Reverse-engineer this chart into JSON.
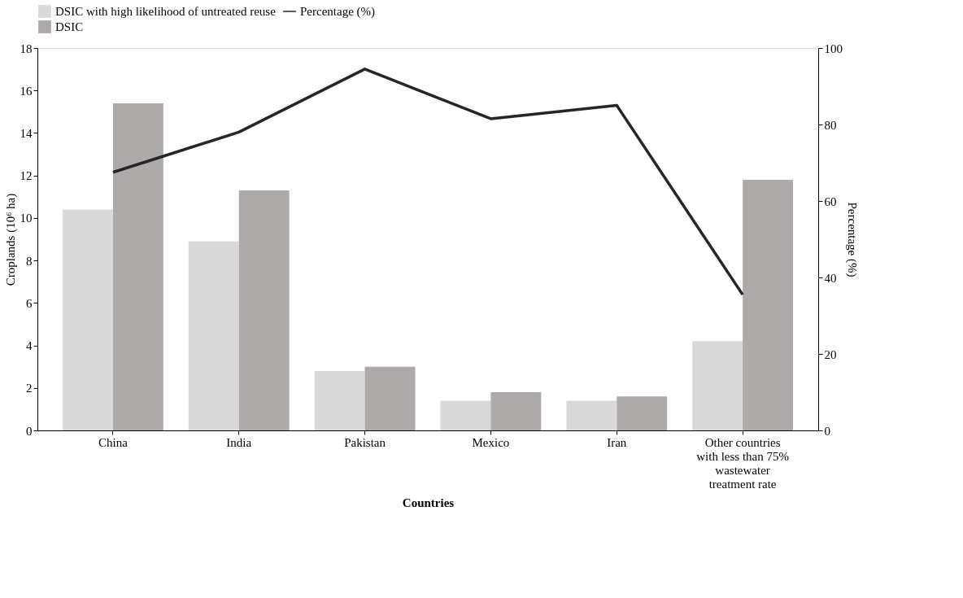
{
  "chart_data": {
    "type": "bar",
    "xlabel": "Countries",
    "ylabel": "Croplands (10⁶ ha)",
    "y2label": "Percentage (%)",
    "categories": [
      "China",
      "India",
      "Pakistan",
      "Mexico",
      "Iran",
      "Other countries with less than 75% wastewater treatment rate"
    ],
    "series": [
      {
        "name": "DSIC with high likelihood of untreated reuse",
        "color": "#d9d9d9",
        "values": [
          10.4,
          8.9,
          2.8,
          1.4,
          1.4,
          4.2
        ]
      },
      {
        "name": "DSIC",
        "color": "#aeaaaa",
        "values": [
          15.4,
          11.3,
          3.0,
          1.8,
          1.6,
          11.8
        ]
      },
      {
        "name": "Percentage (%)",
        "type": "line",
        "axis": "y2",
        "color": "#262626",
        "values": [
          67.5,
          78,
          94.5,
          81.5,
          85,
          35.5
        ]
      }
    ],
    "ylim": [
      0,
      18
    ],
    "yticks": [
      0,
      2,
      4,
      6,
      8,
      10,
      12,
      14,
      16,
      18
    ],
    "y2lim": [
      0,
      100
    ],
    "y2ticks": [
      0,
      20,
      40,
      60,
      80,
      100
    ],
    "grid": false,
    "legend": "top"
  }
}
